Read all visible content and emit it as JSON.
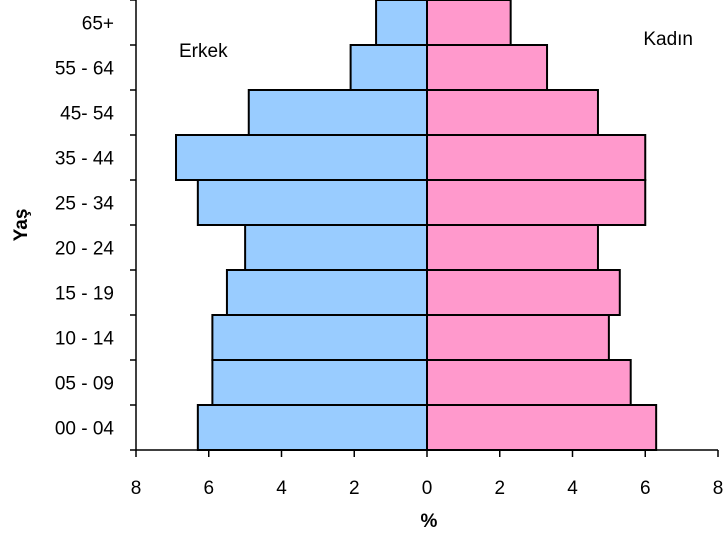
{
  "chart_data": {
    "type": "bar",
    "orientation": "horizontal",
    "ylabel": "Yaş",
    "xlabel": "%",
    "categories": [
      "65+",
      "55 - 64",
      "45- 54",
      "35 - 44",
      "25 - 34",
      "20 - 24",
      "15 - 19",
      "10 - 14",
      "05 - 09",
      "00 - 04"
    ],
    "series": [
      {
        "name": "Erkek",
        "color": "#99ccff",
        "side": "left",
        "values": [
          1.4,
          2.1,
          4.9,
          6.9,
          6.3,
          5.0,
          5.5,
          5.9,
          5.9,
          6.3
        ]
      },
      {
        "name": "Kadın",
        "color": "#ff99cc",
        "side": "right",
        "values": [
          2.3,
          3.3,
          4.7,
          6.0,
          6.0,
          4.7,
          5.3,
          5.0,
          5.6,
          6.3
        ]
      }
    ],
    "xlim": [
      -8,
      8
    ],
    "xticks": [
      -8,
      -6,
      -4,
      -2,
      0,
      2,
      4,
      6,
      8
    ],
    "xtick_labels": [
      "8",
      "6",
      "4",
      "2",
      "0",
      "2",
      "4",
      "6",
      "8"
    ],
    "grid": false,
    "legend": "in-plot labels, top-left and top-right"
  }
}
